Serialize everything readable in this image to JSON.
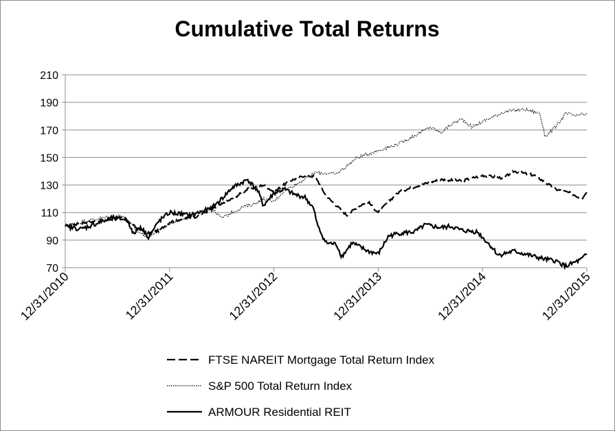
{
  "chart_data": {
    "type": "line",
    "title": "Cumulative Total Returns",
    "xlabel": "",
    "ylabel": "",
    "ylim": [
      70,
      210
    ],
    "yticks": [
      70,
      90,
      110,
      130,
      150,
      170,
      190,
      210
    ],
    "x_tick_labels": [
      "12/31/2010",
      "12/31/2011",
      "12/31/2012",
      "12/31/2013",
      "12/31/2014",
      "12/31/2015"
    ],
    "x_range_years": [
      0,
      5
    ],
    "grid": "horizontal",
    "legend_position": "bottom",
    "series": [
      {
        "name": "FTSE NAREIT Mortgage Total Return Index",
        "style": "dashed",
        "x": [
          0,
          0.2,
          0.35,
          0.55,
          0.7,
          0.8,
          0.9,
          1.0,
          1.1,
          1.25,
          1.45,
          1.6,
          1.75,
          1.9,
          2.0,
          2.15,
          2.3,
          2.4,
          2.5,
          2.6,
          2.7,
          2.8,
          2.9,
          3.0,
          3.1,
          3.2,
          3.4,
          3.6,
          3.8,
          4.0,
          4.2,
          4.3,
          4.5,
          4.7,
          4.85,
          4.95,
          5.0
        ],
        "values": [
          100,
          103,
          104,
          106,
          98,
          95,
          97,
          103,
          105,
          107,
          114,
          120,
          127,
          130,
          125,
          133,
          137,
          136,
          122,
          115,
          108,
          114,
          118,
          110,
          118,
          125,
          130,
          134,
          133,
          137,
          135,
          140,
          137,
          127,
          124,
          120,
          125
        ]
      },
      {
        "name": "S&P 500 Total Return Index",
        "style": "dotted",
        "x": [
          0,
          0.2,
          0.35,
          0.55,
          0.7,
          0.8,
          0.9,
          1.0,
          1.2,
          1.4,
          1.5,
          1.6,
          1.7,
          1.8,
          1.9,
          2.0,
          2.1,
          2.2,
          2.4,
          2.6,
          2.8,
          3.0,
          3.2,
          3.4,
          3.5,
          3.6,
          3.7,
          3.8,
          3.9,
          4.0,
          4.2,
          4.4,
          4.55,
          4.6,
          4.7,
          4.8,
          4.9,
          5.0
        ],
        "values": [
          100,
          104,
          106,
          108,
          96,
          92,
          98,
          102,
          108,
          113,
          106,
          110,
          114,
          116,
          120,
          118,
          126,
          130,
          139,
          138,
          150,
          155,
          160,
          168,
          172,
          168,
          174,
          178,
          172,
          176,
          183,
          185,
          182,
          165,
          172,
          182,
          180,
          182
        ]
      },
      {
        "name": "ARMOUR Residential REIT",
        "style": "solid",
        "x": [
          0,
          0.15,
          0.3,
          0.45,
          0.6,
          0.65,
          0.72,
          0.8,
          0.9,
          1.0,
          1.2,
          1.4,
          1.5,
          1.6,
          1.75,
          1.85,
          1.9,
          2.0,
          2.1,
          2.2,
          2.3,
          2.38,
          2.42,
          2.5,
          2.6,
          2.65,
          2.75,
          2.9,
          3.0,
          3.1,
          3.2,
          3.35,
          3.45,
          3.6,
          3.7,
          3.8,
          3.95,
          4.05,
          4.1,
          4.15,
          4.3,
          4.45,
          4.6,
          4.7,
          4.8,
          4.95,
          5.0
        ],
        "values": [
          100,
          98,
          102,
          106,
          105,
          94,
          100,
          92,
          104,
          110,
          108,
          113,
          120,
          128,
          134,
          125,
          115,
          124,
          127,
          123,
          121,
          113,
          100,
          88,
          87,
          78,
          88,
          82,
          80,
          93,
          95,
          96,
          101,
          99,
          100,
          97,
          96,
          88,
          84,
          79,
          82,
          79,
          76,
          75,
          71,
          76,
          80
        ]
      }
    ]
  }
}
